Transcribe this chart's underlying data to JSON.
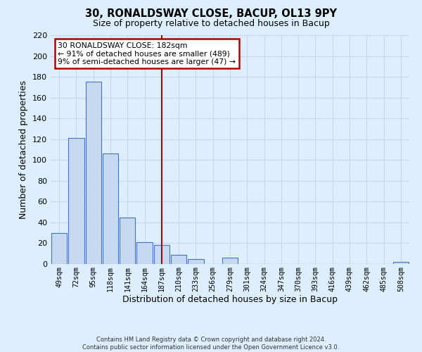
{
  "title": "30, RONALDSWAY CLOSE, BACUP, OL13 9PY",
  "subtitle": "Size of property relative to detached houses in Bacup",
  "xlabel": "Distribution of detached houses by size in Bacup",
  "ylabel": "Number of detached properties",
  "bin_labels": [
    "49sqm",
    "72sqm",
    "95sqm",
    "118sqm",
    "141sqm",
    "164sqm",
    "187sqm",
    "210sqm",
    "233sqm",
    "256sqm",
    "279sqm",
    "301sqm",
    "324sqm",
    "347sqm",
    "370sqm",
    "393sqm",
    "416sqm",
    "439sqm",
    "462sqm",
    "485sqm",
    "508sqm"
  ],
  "bin_counts": [
    30,
    121,
    175,
    106,
    45,
    21,
    18,
    9,
    5,
    0,
    6,
    0,
    0,
    0,
    0,
    0,
    0,
    0,
    0,
    0,
    2
  ],
  "bar_color": "#c6d9f1",
  "bar_edge_color": "#4472c4",
  "grid_color": "#c8d8e8",
  "background_color": "#ddeeff",
  "vline_x_index": 6,
  "vline_color": "#aa0000",
  "annotation_title": "30 RONALDSWAY CLOSE: 182sqm",
  "annotation_line1": "← 91% of detached houses are smaller (489)",
  "annotation_line2": "9% of semi-detached houses are larger (47) →",
  "annotation_box_color": "#ffffff",
  "annotation_box_edge_color": "#aa0000",
  "ylim": [
    0,
    220
  ],
  "yticks": [
    0,
    20,
    40,
    60,
    80,
    100,
    120,
    140,
    160,
    180,
    200,
    220
  ],
  "footer1": "Contains HM Land Registry data © Crown copyright and database right 2024.",
  "footer2": "Contains public sector information licensed under the Open Government Licence v3.0."
}
